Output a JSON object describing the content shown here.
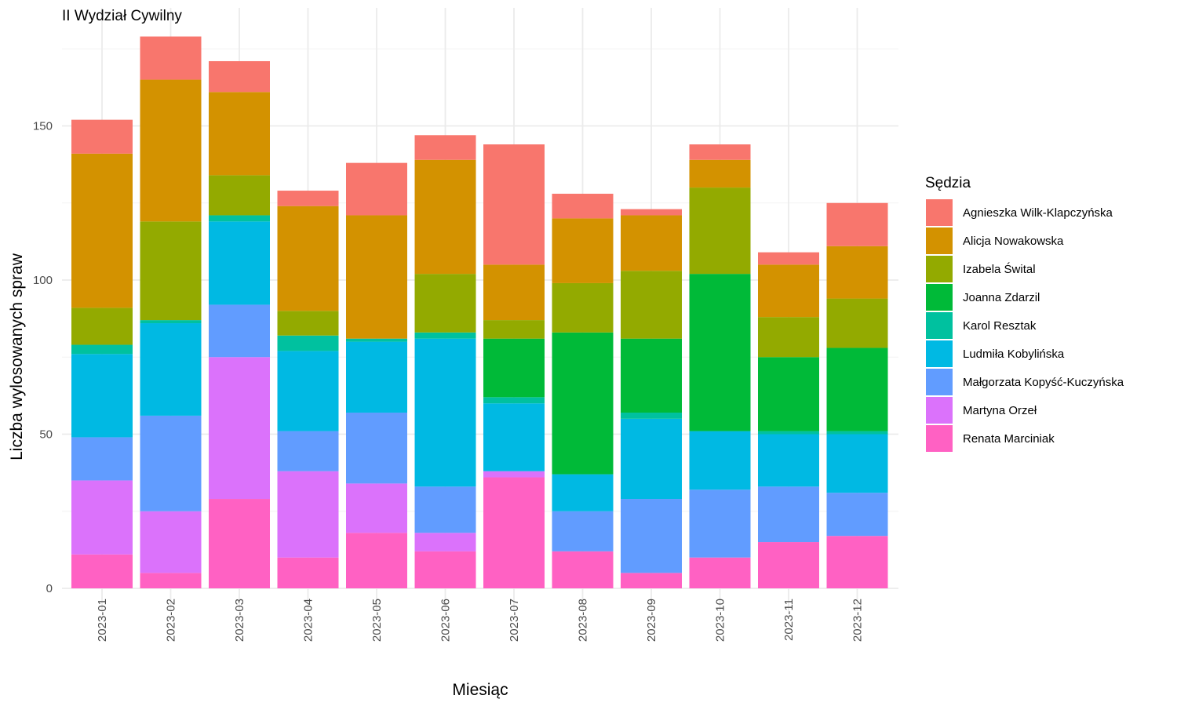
{
  "chart_data": {
    "type": "bar",
    "stacked": true,
    "title": "II Wydział Cywilny",
    "xlabel": "Miesiąc",
    "ylabel": "Liczba wylosowanych spraw",
    "ylim": [
      0,
      180
    ],
    "yticks": [
      0,
      50,
      100,
      150
    ],
    "grid": true,
    "legend_title": "Sędzia",
    "legend_position": "right",
    "categories": [
      "2023-01",
      "2023-02",
      "2023-03",
      "2023-04",
      "2023-05",
      "2023-06",
      "2023-07",
      "2023-08",
      "2023-09",
      "2023-10",
      "2023-11",
      "2023-12"
    ],
    "series": [
      {
        "name": "Agnieszka Wilk-Klapczyńska",
        "color": "#F8766D",
        "values": [
          11,
          14,
          10,
          5,
          17,
          8,
          39,
          8,
          2,
          5,
          4,
          14
        ]
      },
      {
        "name": "Alicja Nowakowska",
        "color": "#D39200",
        "values": [
          50,
          46,
          27,
          34,
          40,
          37,
          18,
          21,
          18,
          9,
          17,
          17
        ]
      },
      {
        "name": "Izabela Śwital",
        "color": "#93AA00",
        "values": [
          12,
          32,
          13,
          8,
          0,
          19,
          6,
          16,
          22,
          28,
          13,
          16
        ]
      },
      {
        "name": "Joanna Zdarzil",
        "color": "#00BA38",
        "values": [
          0,
          0,
          0,
          0,
          0,
          0,
          19,
          46,
          24,
          51,
          24,
          27
        ]
      },
      {
        "name": "Karol Resztak",
        "color": "#00C19F",
        "values": [
          3,
          1,
          2,
          5,
          1,
          2,
          2,
          0,
          2,
          0,
          1,
          1
        ]
      },
      {
        "name": "Ludmiła Kobylińska",
        "color": "#00B9E3",
        "values": [
          27,
          30,
          27,
          26,
          23,
          48,
          22,
          12,
          26,
          19,
          17,
          19
        ]
      },
      {
        "name": "Małgorzata Kopyść-Kuczyńska",
        "color": "#619CFF",
        "values": [
          14,
          31,
          17,
          13,
          23,
          15,
          0,
          13,
          24,
          22,
          18,
          14
        ]
      },
      {
        "name": "Martyna Orzeł",
        "color": "#DB72FB",
        "values": [
          24,
          20,
          46,
          28,
          16,
          6,
          2,
          0,
          0,
          0,
          0,
          0
        ]
      },
      {
        "name": "Renata Marciniak",
        "color": "#FF61C3",
        "values": [
          11,
          5,
          29,
          10,
          18,
          12,
          36,
          12,
          5,
          10,
          15,
          17
        ]
      }
    ]
  }
}
